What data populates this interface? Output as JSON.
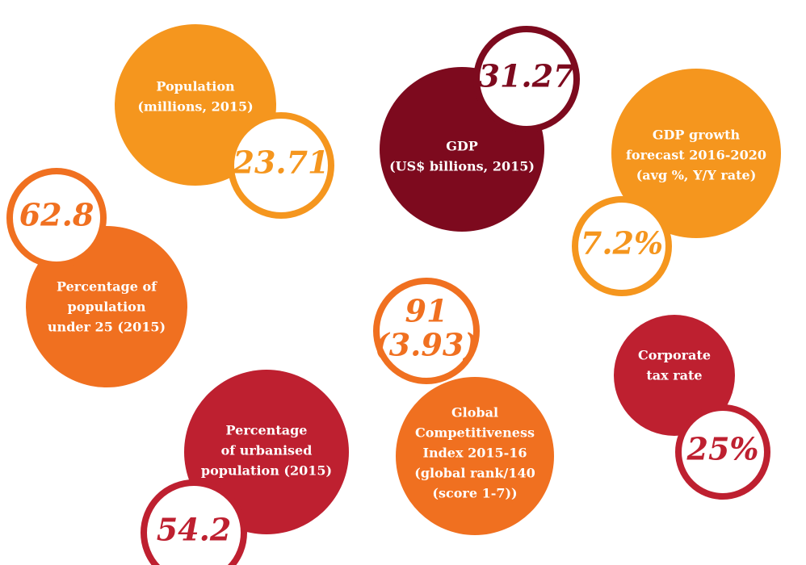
{
  "items": [
    {
      "label": [
        "Population",
        "(millions, 2015)"
      ],
      "value": [
        "23.71"
      ]
    },
    {
      "label": [
        "GDP",
        "(US$ billions, 2015)"
      ],
      "value": [
        "31.27"
      ]
    },
    {
      "label": [
        "GDP growth",
        "forecast 2016-2020",
        "(avg %, Y/Y rate)"
      ],
      "value": [
        "7.2%"
      ]
    },
    {
      "label": [
        "Percentage of",
        "population",
        "under 25 (2015)"
      ],
      "value": [
        "62.8"
      ]
    },
    {
      "label": [
        "Percentage",
        "of urbanised",
        "population (2015)"
      ],
      "value": [
        "54.2"
      ]
    },
    {
      "label": [
        "Global",
        "Competitiveness",
        "Index 2015-16",
        "(global rank/140",
        "(score 1-7))"
      ],
      "value": [
        "91",
        "(3.93)"
      ]
    },
    {
      "label": [
        "Corporate",
        "tax rate"
      ],
      "value": [
        "25%"
      ]
    }
  ]
}
